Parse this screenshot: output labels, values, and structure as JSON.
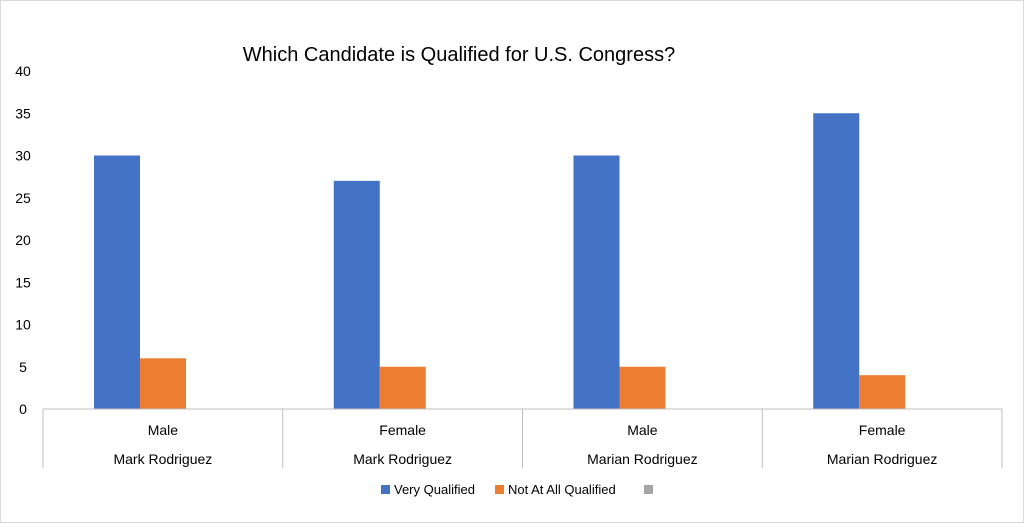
{
  "chart_data": {
    "type": "bar",
    "title": "Which Candidate is Qualified for U.S. Congress?",
    "xlabel": "",
    "ylabel": "",
    "ylim": [
      0,
      40
    ],
    "yticks": [
      0,
      5,
      10,
      15,
      20,
      25,
      30,
      35,
      40
    ],
    "grid": false,
    "legend_position": "bottom",
    "categories": [
      {
        "gender": "Male",
        "name": "Mark Rodriguez"
      },
      {
        "gender": "Female",
        "name": "Mark Rodriguez"
      },
      {
        "gender": "Male",
        "name": "Marian Rodriguez"
      },
      {
        "gender": "Female",
        "name": "Marian Rodriguez"
      }
    ],
    "series": [
      {
        "name": "Very Qualified",
        "color": "#4472c4",
        "values": [
          30,
          27,
          30,
          35
        ]
      },
      {
        "name": "Not At All Qualified",
        "color": "#ed7d31",
        "values": [
          6,
          5,
          5,
          4
        ]
      },
      {
        "name": "",
        "color": "#a5a5a5",
        "values": [
          0,
          0,
          0,
          0
        ]
      }
    ]
  }
}
